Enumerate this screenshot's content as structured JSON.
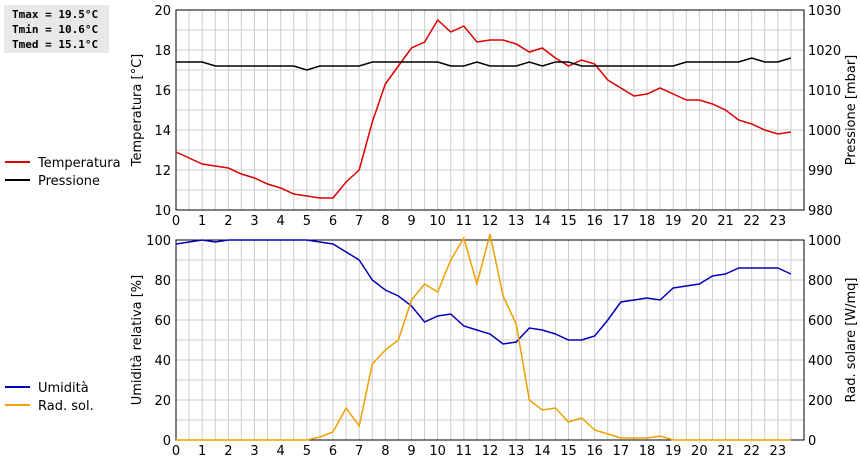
{
  "stats": {
    "tmax": "Tmax = 19.5°C",
    "tmin": "Tmin = 10.6°C",
    "tmed": "Tmed = 15.1°C"
  },
  "colors": {
    "temperature": "#dd0000",
    "pressure": "#000000",
    "humidity": "#0000bb",
    "radiation": "#f0a000",
    "grid": "#cccccc"
  },
  "chart_data": [
    {
      "type": "line",
      "x_ticks": [
        "0",
        "1",
        "2",
        "3",
        "4",
        "5",
        "6",
        "7",
        "8",
        "9",
        "10",
        "11",
        "12",
        "13",
        "14",
        "15",
        "16",
        "17",
        "18",
        "19",
        "20",
        "21",
        "22",
        "23"
      ],
      "xlim": [
        0,
        24
      ],
      "ylabel": "Temperatura [°C]",
      "ylim": [
        10,
        20
      ],
      "y_ticks": [
        "10",
        "12",
        "14",
        "16",
        "18",
        "20"
      ],
      "y2label": "Pressione [mbar]",
      "y2lim": [
        980,
        1030
      ],
      "y2_ticks": [
        "980",
        "990",
        "1000",
        "1010",
        "1020",
        "1030"
      ],
      "grid": true,
      "legend_position": "left",
      "series": [
        {
          "name": "Temperatura",
          "axis": "left",
          "x": [
            0,
            0.5,
            1,
            1.5,
            2,
            2.5,
            3,
            3.5,
            4,
            4.5,
            5,
            5.5,
            6,
            6.5,
            7,
            7.5,
            8,
            8.5,
            9,
            9.5,
            10,
            10.5,
            11,
            11.5,
            12,
            12.5,
            13,
            13.5,
            14,
            14.5,
            15,
            15.5,
            16,
            16.5,
            17,
            17.5,
            18,
            18.5,
            19,
            19.5,
            20,
            20.5,
            21,
            21.5,
            22,
            22.5,
            23,
            23.5
          ],
          "values": [
            12.9,
            12.6,
            12.3,
            12.2,
            12.1,
            11.8,
            11.6,
            11.3,
            11.1,
            10.8,
            10.7,
            10.6,
            10.6,
            11.4,
            12.0,
            14.4,
            16.3,
            17.2,
            18.1,
            18.4,
            19.5,
            18.9,
            19.2,
            18.4,
            18.5,
            18.5,
            18.3,
            17.9,
            18.1,
            17.6,
            17.2,
            17.5,
            17.3,
            16.5,
            16.1,
            15.7,
            15.8,
            16.1,
            15.8,
            15.5,
            15.5,
            15.3,
            15.0,
            14.5,
            14.3,
            14.0,
            13.8,
            13.9
          ]
        },
        {
          "name": "Pressione",
          "axis": "right",
          "x": [
            0,
            1,
            1.5,
            2,
            3,
            4,
            4.5,
            5,
            5.5,
            6,
            7,
            7.5,
            8,
            9,
            10,
            10.5,
            11,
            11.5,
            12,
            13,
            13.5,
            14,
            14.5,
            15,
            15.5,
            16,
            17,
            18,
            19,
            19.5,
            20,
            21,
            21.5,
            22,
            22.5,
            23,
            23.5
          ],
          "values": [
            1017,
            1017,
            1016,
            1016,
            1016,
            1016,
            1016,
            1015,
            1016,
            1016,
            1016,
            1017,
            1017,
            1017,
            1017,
            1016,
            1016,
            1017,
            1016,
            1016,
            1017,
            1016,
            1017,
            1017,
            1016,
            1016,
            1016,
            1016,
            1016,
            1017,
            1017,
            1017,
            1017,
            1018,
            1017,
            1017,
            1018
          ]
        }
      ]
    },
    {
      "type": "line",
      "x_ticks": [
        "0",
        "1",
        "2",
        "3",
        "4",
        "5",
        "6",
        "7",
        "8",
        "9",
        "10",
        "11",
        "12",
        "13",
        "14",
        "15",
        "16",
        "17",
        "18",
        "19",
        "20",
        "21",
        "22",
        "23"
      ],
      "xlim": [
        0,
        24
      ],
      "ylabel": "Umidità relativa [%]",
      "ylim": [
        0,
        100
      ],
      "y_ticks": [
        "0",
        "20",
        "40",
        "60",
        "80",
        "100"
      ],
      "y2label": "Rad. solare [W/mq]",
      "y2lim": [
        0,
        1000
      ],
      "y2_ticks": [
        "0",
        "200",
        "400",
        "600",
        "800",
        "1000"
      ],
      "grid": true,
      "legend_position": "left",
      "series": [
        {
          "name": "Umidità",
          "axis": "left",
          "x": [
            0,
            0.5,
            1,
            1.5,
            2,
            2.5,
            3,
            3.5,
            4,
            4.5,
            5,
            5.5,
            6,
            6.5,
            7,
            7.5,
            8,
            8.5,
            9,
            9.5,
            10,
            10.5,
            11,
            11.5,
            12,
            12.5,
            13,
            13.5,
            14,
            14.5,
            15,
            15.5,
            16,
            16.5,
            17,
            17.5,
            18,
            18.5,
            19,
            19.5,
            20,
            20.5,
            21,
            21.5,
            22,
            22.5,
            23,
            23.5
          ],
          "values": [
            98,
            99,
            100,
            99,
            100,
            100,
            100,
            100,
            100,
            100,
            100,
            99,
            98,
            94,
            90,
            80,
            75,
            72,
            67,
            59,
            62,
            63,
            57,
            55,
            53,
            48,
            49,
            56,
            55,
            53,
            50,
            50,
            52,
            60,
            69,
            70,
            71,
            70,
            76,
            77,
            78,
            82,
            83,
            86,
            86,
            86,
            86,
            83
          ]
        },
        {
          "name": "Rad. sol.",
          "axis": "right",
          "x": [
            0,
            0.5,
            1,
            1.5,
            2,
            2.5,
            3,
            3.5,
            4,
            4.5,
            5,
            5.5,
            6,
            6.5,
            7,
            7.5,
            8,
            8.5,
            9,
            9.5,
            10,
            10.5,
            11,
            11.5,
            12,
            12.5,
            13,
            13.5,
            14,
            14.5,
            15,
            15.5,
            16,
            16.5,
            17,
            17.5,
            18,
            18.5,
            19,
            19.5,
            20,
            20.5,
            21,
            21.5,
            22,
            22.5,
            23,
            23.5
          ],
          "values": [
            0,
            0,
            0,
            0,
            0,
            0,
            0,
            0,
            0,
            0,
            0,
            15,
            40,
            160,
            70,
            380,
            450,
            500,
            700,
            780,
            740,
            900,
            1010,
            780,
            1030,
            720,
            580,
            200,
            150,
            160,
            90,
            110,
            50,
            30,
            10,
            10,
            10,
            20,
            0,
            0,
            0,
            0,
            0,
            0,
            0,
            0,
            0,
            0
          ]
        }
      ]
    }
  ]
}
